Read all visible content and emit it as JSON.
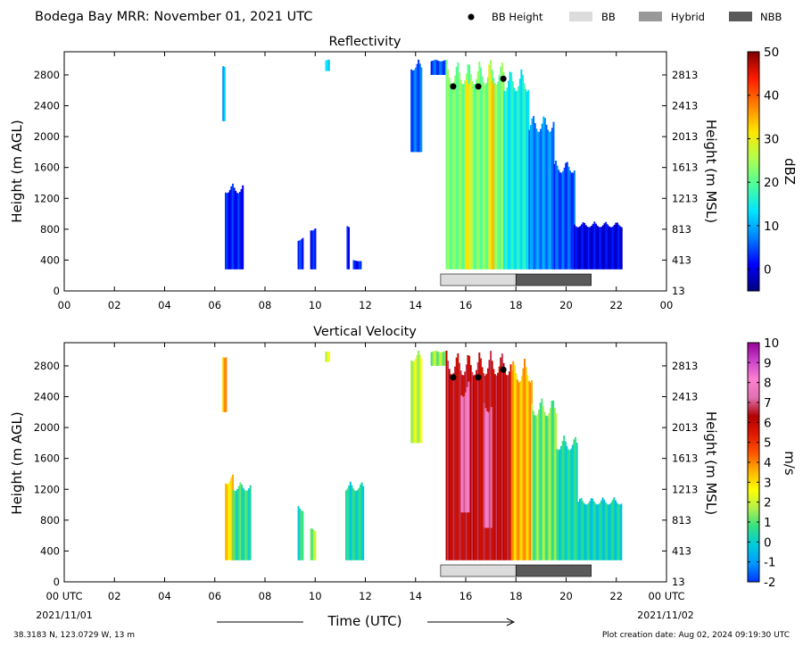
{
  "header": {
    "title": "Bodega Bay MRR:  November 01, 2021 UTC",
    "legend": [
      {
        "label": "BB Height",
        "kind": "dot",
        "color": "#000000"
      },
      {
        "label": "BB",
        "kind": "box",
        "color": "#dcdcdc"
      },
      {
        "label": "Hybrid",
        "kind": "box",
        "color": "#999999"
      },
      {
        "label": "NBB",
        "kind": "box",
        "color": "#5a5a5a"
      }
    ]
  },
  "footer": {
    "xlabel": "Time (UTC)",
    "start_date": "2021/11/01",
    "end_date": "2021/11/02",
    "location": "38.3183 N, 123.0729 W, 13 m",
    "created": "Plot creation date: Aug 02, 2024 09:19:30 UTC"
  },
  "chart_data": [
    {
      "type": "heatmap",
      "title": "Reflectivity",
      "ylabel": "Height (m AGL)",
      "ylabel_right": "Height (m MSL)",
      "colorbar_label": "dBZ",
      "x_ticks": [
        "00",
        "02",
        "04",
        "06",
        "08",
        "10",
        "12",
        "14",
        "16",
        "18",
        "20",
        "22",
        "00"
      ],
      "xlim": [
        0,
        24
      ],
      "y_ticks": [
        0,
        400,
        800,
        1200,
        1600,
        2000,
        2400,
        2800
      ],
      "y_ticks_right": [
        "13",
        "413",
        "813",
        "1213",
        "1613",
        "2013",
        "2413",
        "2813"
      ],
      "ylim": [
        0,
        3100
      ],
      "colorbar": {
        "min": -5,
        "max": 50,
        "ticks": [
          0,
          10,
          20,
          30,
          40,
          50
        ],
        "colors": [
          "#00007f",
          "#0000ff",
          "#0080ff",
          "#00e5ff",
          "#4dff99",
          "#b2ff4d",
          "#ffe600",
          "#ff8000",
          "#ff1a00",
          "#800000"
        ]
      },
      "bright_band_height": [
        {
          "x": 15.5,
          "y": 2650
        },
        {
          "x": 16.5,
          "y": 2650
        },
        {
          "x": 17.5,
          "y": 2750
        }
      ],
      "bb_type_bar": [
        {
          "type": "BB",
          "start": 15.0,
          "end": 18.0
        },
        {
          "type": "NBB",
          "start": 18.0,
          "end": 21.0
        }
      ],
      "echoes": [
        {
          "x0": 6.3,
          "x1": 6.4,
          "bottom": 2200,
          "top": 3000,
          "value": 10
        },
        {
          "x0": 6.4,
          "x1": 7.1,
          "bottom": 280,
          "top": 1400,
          "value": 2
        },
        {
          "x0": 9.3,
          "x1": 9.5,
          "bottom": 280,
          "top": 700,
          "value": 3
        },
        {
          "x0": 9.8,
          "x1": 10.0,
          "bottom": 280,
          "top": 850,
          "value": 2
        },
        {
          "x0": 10.4,
          "x1": 10.55,
          "bottom": 2850,
          "top": 3000,
          "value": 12
        },
        {
          "x0": 11.25,
          "x1": 11.35,
          "bottom": 280,
          "top": 900,
          "value": 2
        },
        {
          "x0": 11.5,
          "x1": 11.8,
          "bottom": 280,
          "top": 400,
          "value": 2
        },
        {
          "x0": 13.8,
          "x1": 14.2,
          "bottom": 1800,
          "top": 3000,
          "value": 6
        },
        {
          "x0": 14.6,
          "x1": 15.2,
          "bottom": 2800,
          "top": 3000,
          "value": 5
        },
        {
          "x0": 15.2,
          "x1": 17.5,
          "bottom": 280,
          "top": 3000,
          "value": 22
        },
        {
          "x0": 16.0,
          "x1": 16.2,
          "bottom": 280,
          "top": 3000,
          "value": 30
        },
        {
          "x0": 16.9,
          "x1": 17.1,
          "bottom": 280,
          "top": 3000,
          "value": 32
        },
        {
          "x0": 17.5,
          "x1": 18.5,
          "bottom": 280,
          "top": 2900,
          "value": 15
        },
        {
          "x0": 18.5,
          "x1": 19.5,
          "bottom": 280,
          "top": 2300,
          "value": 8
        },
        {
          "x0": 19.5,
          "x1": 20.3,
          "bottom": 280,
          "top": 1700,
          "value": 5
        },
        {
          "x0": 20.3,
          "x1": 22.2,
          "bottom": 280,
          "top": 900,
          "value": 0
        }
      ]
    },
    {
      "type": "heatmap",
      "title": "Vertical Velocity",
      "ylabel": "Height (m AGL)",
      "ylabel_right": "Height (m MSL)",
      "colorbar_label": "m/s",
      "x_ticks": [
        "00 UTC",
        "02",
        "04",
        "06",
        "08",
        "10",
        "12",
        "14",
        "16",
        "18",
        "20",
        "22",
        "00 UTC"
      ],
      "xlim": [
        0,
        24
      ],
      "y_ticks": [
        0,
        400,
        800,
        1200,
        1600,
        2000,
        2400,
        2800
      ],
      "y_ticks_right": [
        "13",
        "413",
        "813",
        "1213",
        "1613",
        "2013",
        "2413",
        "2813"
      ],
      "ylim": [
        0,
        3100
      ],
      "colorbar": {
        "min": -2,
        "max": 10,
        "ticks": [
          -2,
          -1,
          0,
          1,
          2,
          3,
          4,
          5,
          6,
          7,
          8,
          9,
          10
        ],
        "colors": [
          "#0033ff",
          "#0099ff",
          "#00ccdd",
          "#33e080",
          "#b3f04d",
          "#ffff00",
          "#ffb300",
          "#ff5500",
          "#e01a00",
          "#b00000",
          "#e070b0",
          "#ff80d0",
          "#cc44cc",
          "#990099"
        ]
      },
      "bright_band_height": [
        {
          "x": 15.5,
          "y": 2650
        },
        {
          "x": 16.5,
          "y": 2650
        },
        {
          "x": 17.5,
          "y": 2750
        }
      ],
      "bb_type_bar": [
        {
          "type": "BB",
          "start": 15.0,
          "end": 18.0
        },
        {
          "type": "NBB",
          "start": 18.0,
          "end": 21.0
        }
      ],
      "echoes": [
        {
          "x0": 6.3,
          "x1": 6.45,
          "bottom": 2200,
          "top": 3000,
          "value": 3.5
        },
        {
          "x0": 6.4,
          "x1": 6.7,
          "bottom": 280,
          "top": 1400,
          "value": 3
        },
        {
          "x0": 6.7,
          "x1": 7.4,
          "bottom": 280,
          "top": 1300,
          "value": 0.6
        },
        {
          "x0": 9.3,
          "x1": 9.5,
          "bottom": 280,
          "top": 1000,
          "value": 0.5
        },
        {
          "x0": 9.8,
          "x1": 10.0,
          "bottom": 280,
          "top": 700,
          "value": 1.5
        },
        {
          "x0": 10.4,
          "x1": 10.55,
          "bottom": 2850,
          "top": 3000,
          "value": 2
        },
        {
          "x0": 11.2,
          "x1": 11.9,
          "bottom": 280,
          "top": 1300,
          "value": 0.3
        },
        {
          "x0": 13.8,
          "x1": 14.2,
          "bottom": 1800,
          "top": 3000,
          "value": 2
        },
        {
          "x0": 14.6,
          "x1": 15.2,
          "bottom": 2800,
          "top": 3000,
          "value": 1.5
        },
        {
          "x0": 15.2,
          "x1": 17.8,
          "bottom": 280,
          "top": 3000,
          "value": 6.2
        },
        {
          "x0": 15.8,
          "x1": 16.1,
          "bottom": 900,
          "top": 2600,
          "value": 7.6
        },
        {
          "x0": 16.7,
          "x1": 17.0,
          "bottom": 700,
          "top": 2400,
          "value": 7.5
        },
        {
          "x0": 17.8,
          "x1": 18.6,
          "bottom": 280,
          "top": 2900,
          "value": 3.5
        },
        {
          "x0": 18.6,
          "x1": 19.6,
          "bottom": 280,
          "top": 2400,
          "value": 1.2
        },
        {
          "x0": 19.6,
          "x1": 20.4,
          "bottom": 280,
          "top": 1900,
          "value": 0.3
        },
        {
          "x0": 20.4,
          "x1": 22.2,
          "bottom": 280,
          "top": 1100,
          "value": 0.1
        }
      ]
    }
  ]
}
